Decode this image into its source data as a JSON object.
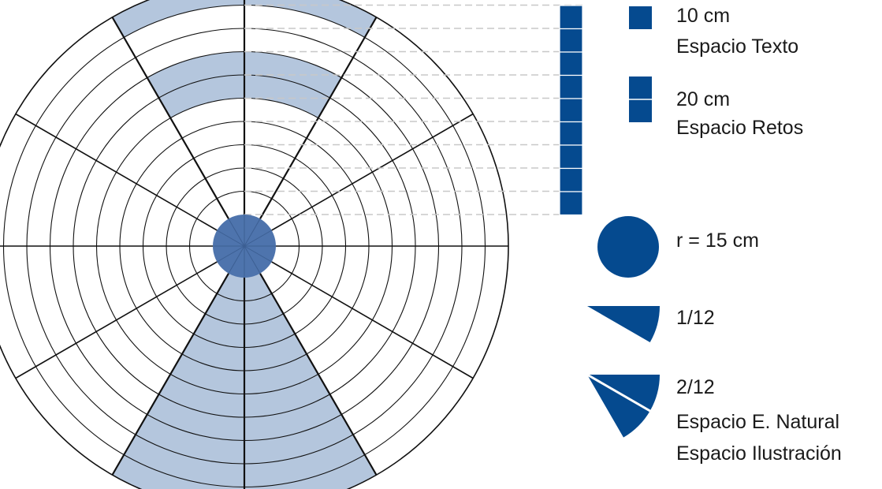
{
  "diagram": {
    "fill_color": "#b4c6dd",
    "line_color": "#111111",
    "hub_color": "#4e74ad",
    "accent_color": "#054a8f",
    "dash_color": "#c8c8c8",
    "legend_bg": "#ffffff"
  },
  "legend": {
    "square_size": "10 cm",
    "square_label": "Espacio Texto",
    "double_square_size": "20 cm",
    "double_square_label": "Espacio Retos",
    "circle_label": "r = 15 cm",
    "one_sector_label": "1/12",
    "two_sector_label": "2/12",
    "natural_label": "Espacio E. Natural",
    "illustration_label": "Espacio Ilustración"
  }
}
